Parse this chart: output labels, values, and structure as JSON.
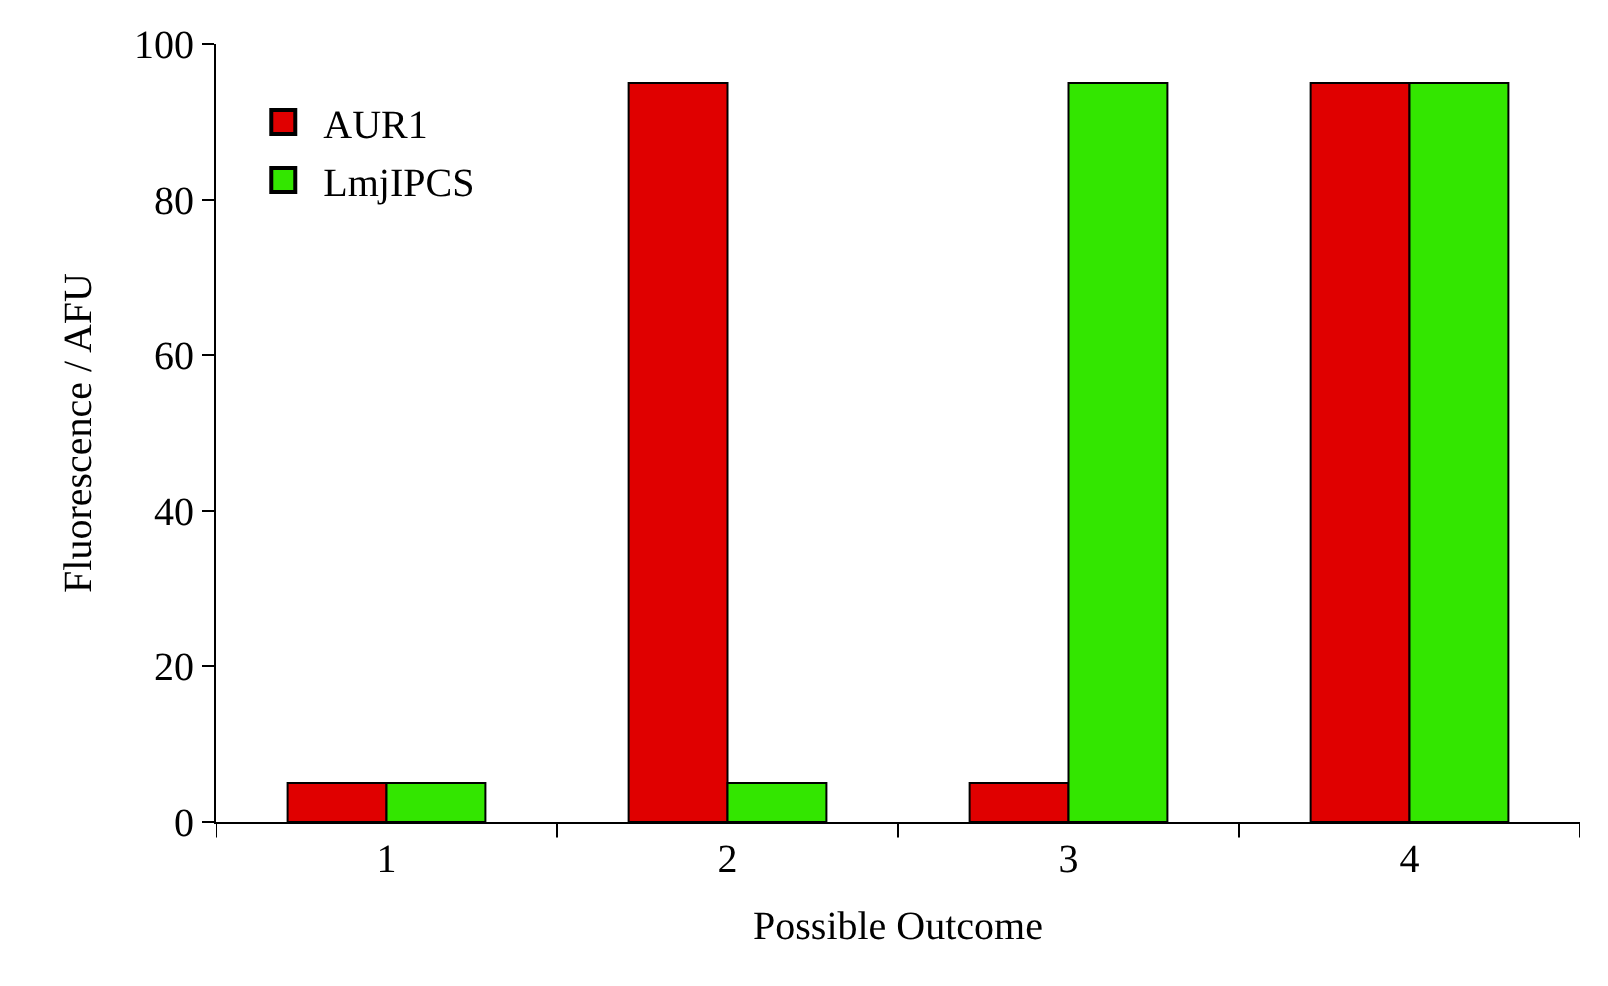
{
  "chart_data": {
    "type": "bar",
    "xlabel": "Possible Outcome",
    "ylabel": "Fluorescence / AFU",
    "categories": [
      "1",
      "2",
      "3",
      "4"
    ],
    "series": [
      {
        "name": "AUR1",
        "color": "#e00000",
        "values": [
          5,
          95,
          5,
          95
        ]
      },
      {
        "name": "LmjIPCS",
        "color": "#33e600",
        "values": [
          5,
          5,
          95,
          95
        ]
      }
    ],
    "ylim": [
      0,
      100
    ],
    "yticks": [
      0,
      20,
      40,
      60,
      80,
      100
    ],
    "legend": "top left"
  }
}
